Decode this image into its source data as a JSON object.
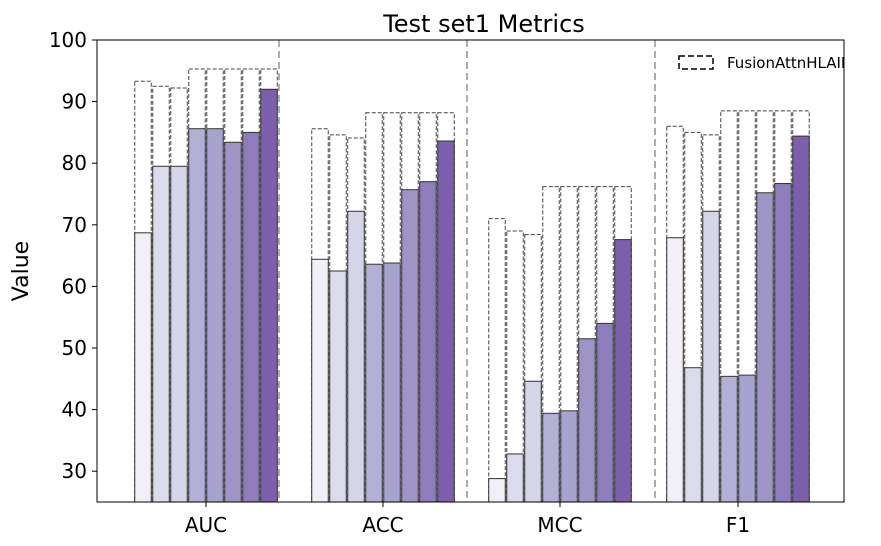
{
  "chart_data": {
    "type": "bar",
    "title": "Test set1 Metrics",
    "xlabel": "",
    "ylabel": "Value",
    "ylim": [
      25,
      100
    ],
    "yticks": [
      30,
      40,
      50,
      60,
      70,
      80,
      90,
      100
    ],
    "categories": [
      "AUC",
      "ACC",
      "MCC",
      "F1"
    ],
    "bars_per_group": 8,
    "bar_colors": [
      "#f2eff6",
      "#dcdbec",
      "#d6d5e8",
      "#b2b0d6",
      "#a6a4cf",
      "#9e94c6",
      "#8e7dbd",
      "#7c60ad"
    ],
    "dashed_series": {
      "name": "FusionAttnHLAII",
      "values": [
        [
          93.3,
          92.5,
          92.2,
          95.3,
          95.3,
          95.3,
          95.3,
          95.3
        ],
        [
          85.6,
          84.6,
          84.1,
          88.2,
          88.2,
          88.2,
          88.2,
          88.2
        ],
        [
          71.0,
          69.0,
          68.4,
          76.2,
          76.2,
          76.2,
          76.2,
          76.2
        ],
        [
          86.0,
          85.0,
          84.6,
          88.5,
          88.5,
          88.5,
          88.5,
          88.5
        ]
      ]
    },
    "solid_values": [
      [
        68.7,
        79.5,
        79.5,
        85.6,
        85.6,
        83.4,
        85.0,
        92.0
      ],
      [
        64.4,
        62.5,
        72.2,
        63.6,
        63.8,
        75.7,
        77.0,
        83.6
      ],
      [
        28.8,
        32.8,
        44.6,
        39.4,
        39.8,
        51.5,
        54.0,
        67.6
      ],
      [
        67.9,
        46.8,
        72.2,
        45.4,
        45.6,
        75.2,
        76.7,
        84.4
      ]
    ],
    "group_separators": true,
    "legend_position": "top-right"
  }
}
